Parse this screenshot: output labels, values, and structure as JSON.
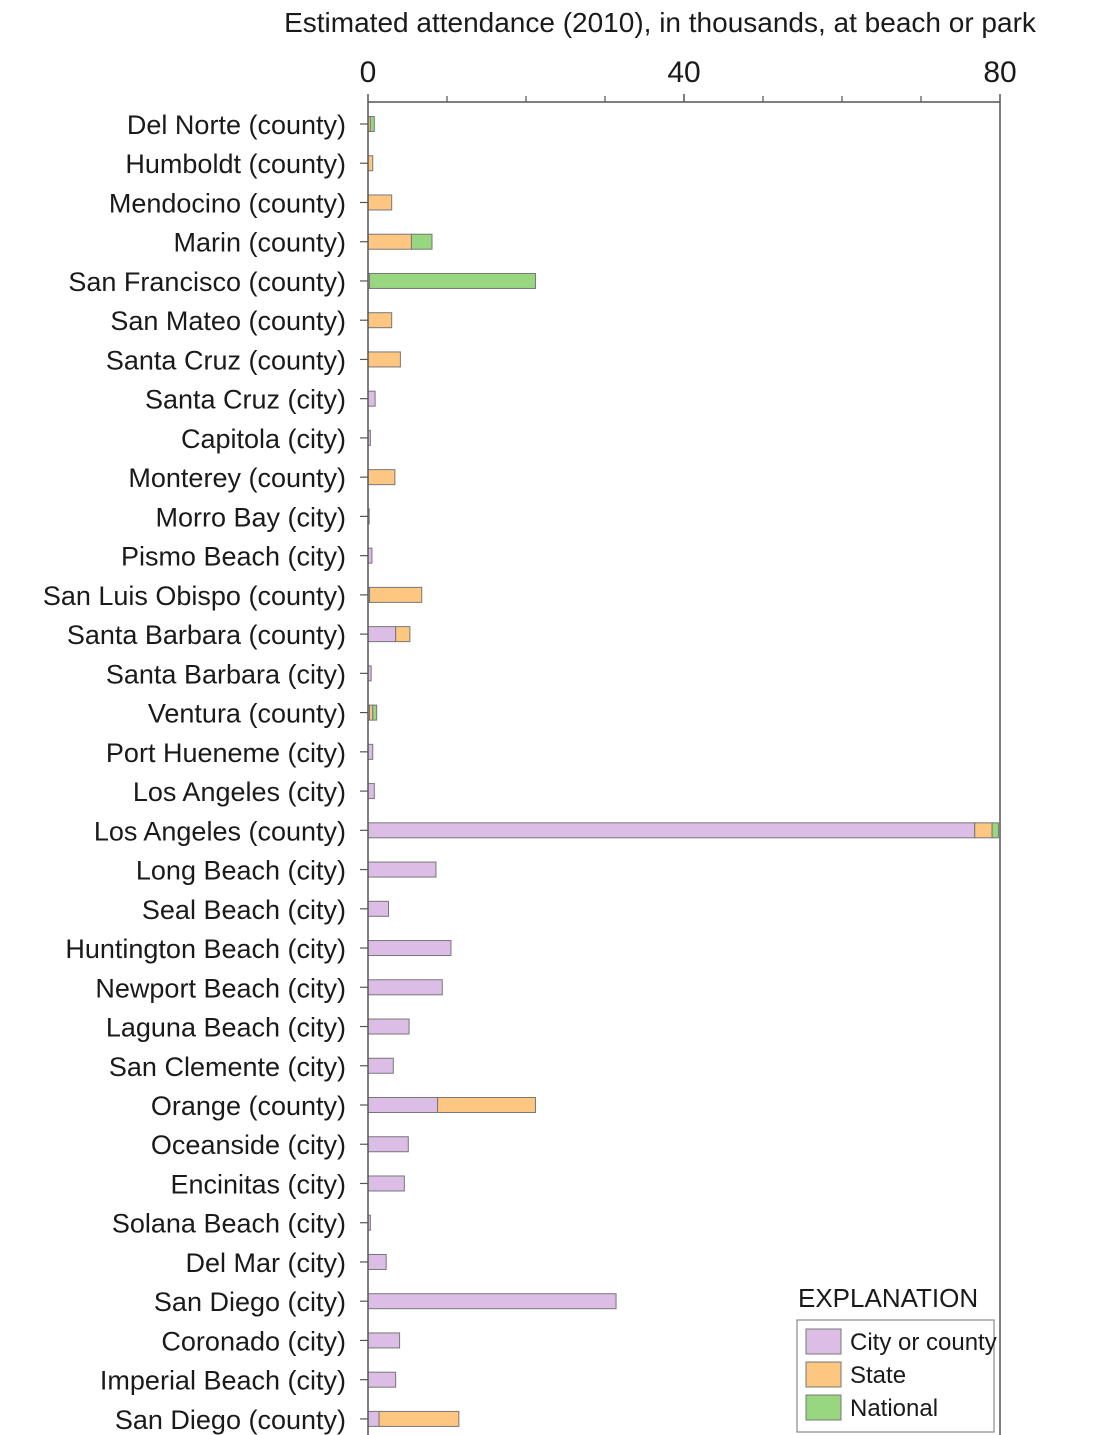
{
  "chart_data": {
    "type": "bar",
    "orientation": "horizontal",
    "stacked": true,
    "title": "Estimated attendance (2010), in thousands, at beach or park",
    "xlim": [
      0,
      80
    ],
    "x_ticks": [
      0,
      40,
      80
    ],
    "x_minor_ticks": [
      10,
      20,
      30,
      50,
      60,
      70
    ],
    "grid": false,
    "categories": [
      "Del Norte (county)",
      "Humboldt (county)",
      "Mendocino (county)",
      "Marin (county)",
      "San Francisco (county)",
      "San Mateo (county)",
      "Santa Cruz (county)",
      "Santa Cruz (city)",
      "Capitola (city)",
      "Monterey (county)",
      "Morro Bay (city)",
      "Pismo Beach (city)",
      "San Luis Obispo (county)",
      "Santa Barbara (county)",
      "Santa Barbara (city)",
      "Ventura (county)",
      "Port Hueneme (city)",
      "Los Angeles (city)",
      "Los Angeles (county)",
      "Long Beach (city)",
      "Seal Beach (city)",
      "Huntington Beach (city)",
      "Newport Beach (city)",
      "Laguna Beach (city)",
      "San Clemente (city)",
      "Orange (county)",
      "Oceanside (city)",
      "Encinitas (city)",
      "Solana Beach (city)",
      "Del Mar (city)",
      "San Diego (city)",
      "Coronado (city)",
      "Imperial Beach (city)",
      "San Diego (county)"
    ],
    "series": [
      {
        "name": "City or county",
        "color": "#dcbde6",
        "values": [
          0,
          0,
          0,
          0,
          0.2,
          0,
          0,
          0.9,
          0.3,
          0,
          0.15,
          0.5,
          0.2,
          3.5,
          0.4,
          0.2,
          0.6,
          0.8,
          76.8,
          8.6,
          2.6,
          10.5,
          9.4,
          5.2,
          3.2,
          8.8,
          5.1,
          4.6,
          0.3,
          2.3,
          31.4,
          4.0,
          3.5,
          1.4
        ]
      },
      {
        "name": "State",
        "color": "#fdc681",
        "values": [
          0.3,
          0.6,
          3.0,
          5.5,
          0,
          3.0,
          4.1,
          0,
          0,
          3.4,
          0,
          0,
          6.6,
          1.8,
          0,
          0.4,
          0,
          0,
          2.2,
          0,
          0,
          0,
          0,
          0,
          0,
          12.4,
          0,
          0,
          0,
          0,
          0,
          0,
          0,
          10.1
        ]
      },
      {
        "name": "National",
        "color": "#98d780",
        "values": [
          0.5,
          0,
          0,
          2.6,
          21.0,
          0,
          0,
          0,
          0,
          0,
          0,
          0,
          0,
          0,
          0,
          0.5,
          0,
          0,
          0.8,
          0,
          0,
          0,
          0,
          0,
          0,
          0,
          0,
          0,
          0,
          0,
          0,
          0,
          0,
          0
        ]
      }
    ],
    "legend": {
      "title": "EXPLANATION",
      "placement": "bottom-right",
      "entries": [
        "City or county",
        "State",
        "National"
      ]
    },
    "colors": {
      "border": "#555555",
      "bar_stroke": "#777777"
    }
  }
}
